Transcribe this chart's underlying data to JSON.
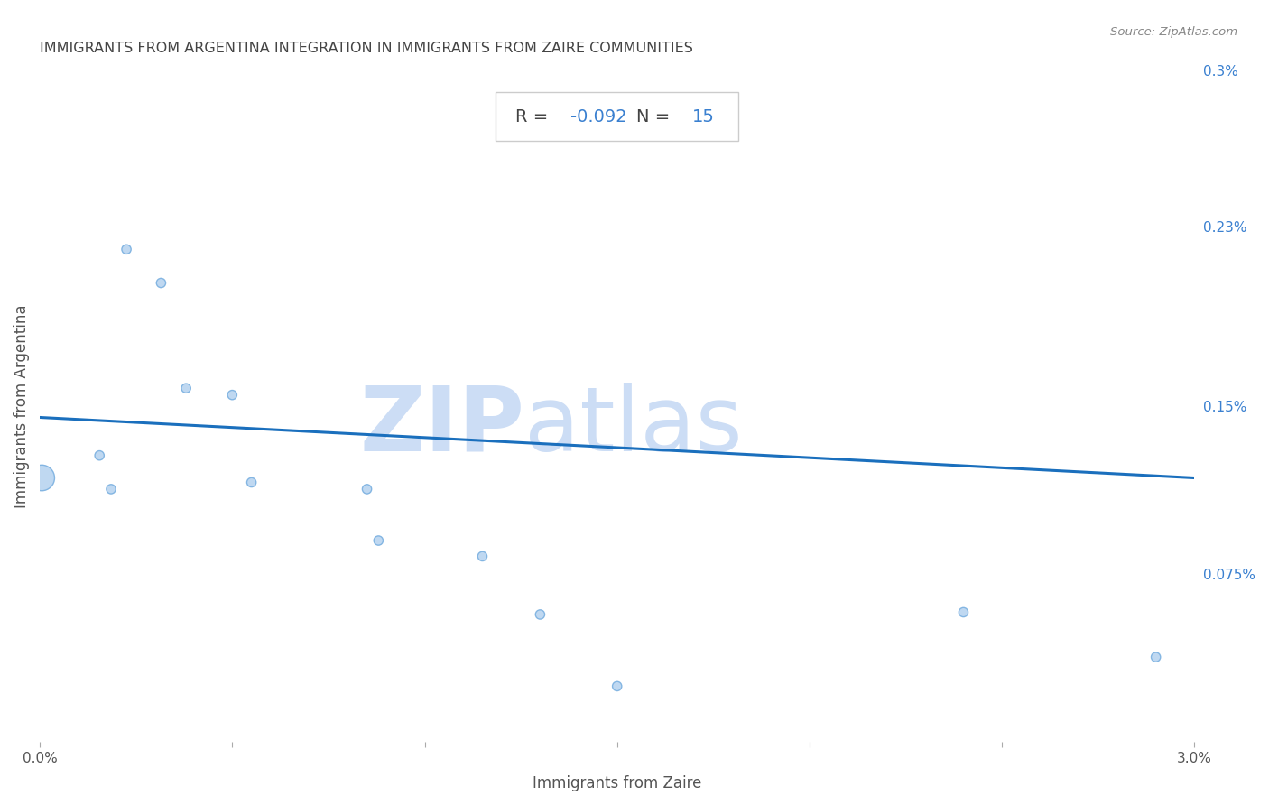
{
  "title": "IMMIGRANTS FROM ARGENTINA INTEGRATION IN IMMIGRANTS FROM ZAIRE COMMUNITIES",
  "source": "Source: ZipAtlas.com",
  "xlabel": "Immigrants from Zaire",
  "ylabel": "Immigrants from Argentina",
  "R": -0.092,
  "N": 15,
  "xlim": [
    0.0,
    0.03
  ],
  "ylim": [
    0.0,
    0.003
  ],
  "x_ticks": [
    0.0,
    0.005,
    0.01,
    0.015,
    0.02,
    0.025,
    0.03
  ],
  "x_tick_labels": [
    "0.0%",
    "",
    "",
    "",
    "",
    "",
    "3.0%"
  ],
  "y_tick_labels_right": [
    "0.075%",
    "0.15%",
    "0.23%",
    "0.3%"
  ],
  "y_tick_positions_right": [
    0.00075,
    0.0015,
    0.0023,
    0.003
  ],
  "scatter_x": [
    5e-05,
    0.00155,
    0.00185,
    0.00225,
    0.00315,
    0.0038,
    0.005,
    0.0055,
    0.0085,
    0.0088,
    0.0115,
    0.013,
    0.015,
    0.024,
    0.029
  ],
  "scatter_y": [
    0.00118,
    0.00128,
    0.00113,
    0.0022,
    0.00205,
    0.00158,
    0.00155,
    0.00116,
    0.00113,
    0.0009,
    0.00083,
    0.00057,
    0.00025,
    0.00058,
    0.00038
  ],
  "scatter_sizes": [
    420,
    55,
    55,
    55,
    55,
    55,
    55,
    55,
    55,
    55,
    55,
    55,
    55,
    55,
    55
  ],
  "scatter_color": "#b8d4f0",
  "scatter_edge_color": "#7ab0e0",
  "trend_color": "#1a6fbd",
  "trend_x_start": 0.0,
  "trend_x_end": 0.03,
  "trend_y_start": 0.00145,
  "trend_y_end": 0.00118,
  "watermark_zip": "ZIP",
  "watermark_atlas": "atlas",
  "watermark_color": "#ccddf5",
  "background_color": "#ffffff",
  "title_color": "#444444",
  "title_fontsize": 11.5,
  "axis_label_color": "#555555",
  "tick_label_color_right": "#3a80d0",
  "grid_color": "#cccccc",
  "grid_linestyle": "--",
  "annotation_label_color": "#444444",
  "annotation_value_color": "#3a80d0",
  "annotation_fontsize": 14,
  "source_color": "#888888"
}
